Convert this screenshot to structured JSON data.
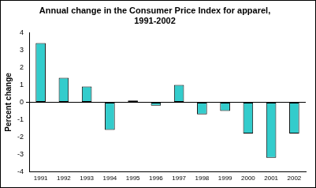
{
  "chart_data": {
    "type": "bar",
    "title": [
      "Annual change in the Consumer Price Index for apparel,",
      "1991-2002"
    ],
    "y_label": "Percent change",
    "categories": [
      "1991",
      "1992",
      "1993",
      "1994",
      "1995",
      "1996",
      "1997",
      "1998",
      "1999",
      "2000",
      "2001",
      "2002"
    ],
    "values": [
      3.4,
      1.4,
      0.9,
      -1.6,
      0.1,
      -0.2,
      1.0,
      -0.7,
      -0.5,
      -1.8,
      -3.2,
      -1.8
    ],
    "color": "#33cccc",
    "ylim": [
      -4,
      4
    ],
    "yticks": [
      -4,
      -3,
      -2,
      -1,
      0,
      1,
      2,
      3,
      4
    ],
    "grid": false
  }
}
